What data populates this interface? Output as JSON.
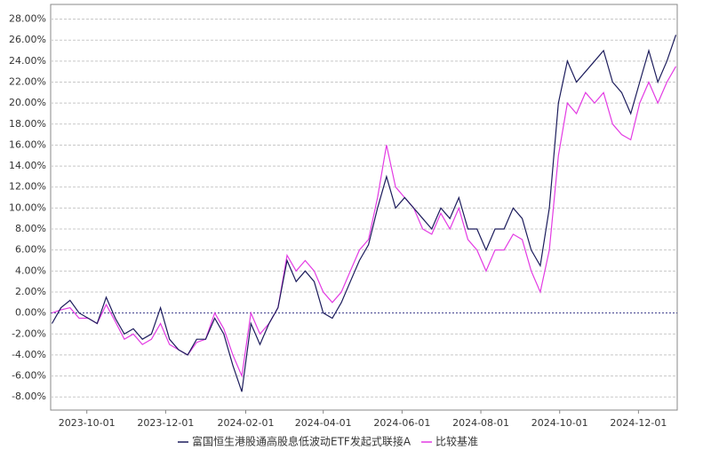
{
  "chart_data": {
    "type": "line",
    "x": [
      "2023-09-04",
      "2023-09-11",
      "2023-09-18",
      "2023-09-25",
      "2023-10-02",
      "2023-10-09",
      "2023-10-16",
      "2023-10-23",
      "2023-10-30",
      "2023-11-06",
      "2023-11-13",
      "2023-11-20",
      "2023-11-27",
      "2023-12-04",
      "2023-12-11",
      "2023-12-18",
      "2023-12-25",
      "2024-01-01",
      "2024-01-08",
      "2024-01-15",
      "2024-01-22",
      "2024-01-29",
      "2024-02-05",
      "2024-02-12",
      "2024-02-19",
      "2024-02-26",
      "2024-03-04",
      "2024-03-11",
      "2024-03-18",
      "2024-03-25",
      "2024-04-01",
      "2024-04-08",
      "2024-04-15",
      "2024-04-22",
      "2024-04-29",
      "2024-05-06",
      "2024-05-13",
      "2024-05-20",
      "2024-05-27",
      "2024-06-03",
      "2024-06-10",
      "2024-06-17",
      "2024-06-24",
      "2024-07-01",
      "2024-07-08",
      "2024-07-15",
      "2024-07-22",
      "2024-07-29",
      "2024-08-05",
      "2024-08-12",
      "2024-08-19",
      "2024-08-26",
      "2024-09-02",
      "2024-09-09",
      "2024-09-16",
      "2024-09-23",
      "2024-09-30",
      "2024-10-07",
      "2024-10-14",
      "2024-10-21",
      "2024-10-28",
      "2024-11-04",
      "2024-11-11",
      "2024-11-18",
      "2024-11-25",
      "2024-12-02",
      "2024-12-09",
      "2024-12-16",
      "2024-12-23",
      "2024-12-30"
    ],
    "series": [
      {
        "name": "富国恒生港股通高股息低波动ETF发起式联接A",
        "color": "#1c1c5c",
        "values": [
          -1,
          0.5,
          1.2,
          0,
          -0.5,
          -1,
          1.5,
          -0.5,
          -2,
          -1.5,
          -2.5,
          -2,
          0.5,
          -2.5,
          -3.5,
          -4,
          -2.5,
          -2.5,
          -0.5,
          -2,
          -5,
          -7.5,
          -1,
          -3,
          -1,
          0.5,
          5,
          3,
          4,
          3,
          0,
          -0.5,
          1,
          3,
          5,
          6.5,
          10,
          13,
          10,
          11,
          10,
          9,
          8,
          10,
          9,
          11,
          8,
          8,
          6,
          8,
          8,
          10,
          9,
          6,
          4.5,
          10,
          20,
          24,
          22,
          23,
          24,
          25,
          22,
          21,
          19,
          22,
          25,
          22,
          24,
          26.5
        ]
      },
      {
        "name": "比较基准",
        "color": "#e33be3",
        "values": [
          0,
          0.3,
          0.5,
          -0.5,
          -0.5,
          -1,
          0.8,
          -0.8,
          -2.5,
          -2,
          -3,
          -2.5,
          -1,
          -3,
          -3.5,
          -4,
          -2.8,
          -2.5,
          0,
          -1.5,
          -4,
          -6,
          0,
          -2,
          -1,
          0.5,
          5.5,
          4,
          5,
          4,
          2,
          1,
          2,
          4,
          6,
          7,
          11,
          16,
          12,
          11,
          10,
          8,
          7.5,
          9.5,
          8,
          10,
          7,
          6,
          4,
          6,
          6,
          7.5,
          7,
          4,
          2,
          6,
          15,
          20,
          19,
          21,
          20,
          21,
          18,
          17,
          16.5,
          20,
          22,
          20,
          22,
          23.5
        ]
      }
    ],
    "xlim": [
      "2023-09-03",
      "2024-12-31"
    ],
    "xticks": [
      "2023-10-01",
      "2023-12-01",
      "2024-02-01",
      "2024-04-01",
      "2024-06-01",
      "2024-08-01",
      "2024-10-01",
      "2024-12-01"
    ],
    "ylim": [
      -9.25,
      29.4
    ],
    "yticks": [
      {
        "value": -8,
        "label": "-8.00%"
      },
      {
        "value": -6,
        "label": "-6.00%"
      },
      {
        "value": -4,
        "label": "-4.00%"
      },
      {
        "value": -2,
        "label": "-2.00%"
      },
      {
        "value": 0,
        "label": "0.00%"
      },
      {
        "value": 2,
        "label": "2.00%"
      },
      {
        "value": 4,
        "label": "4.00%"
      },
      {
        "value": 6,
        "label": "6.00%"
      },
      {
        "value": 8,
        "label": "8.00%"
      },
      {
        "value": 10,
        "label": "10.00%"
      },
      {
        "value": 12,
        "label": "12.00%"
      },
      {
        "value": 14,
        "label": "14.00%"
      },
      {
        "value": 16,
        "label": "16.00%"
      },
      {
        "value": 18,
        "label": "18.00%"
      },
      {
        "value": 20,
        "label": "20.00%"
      },
      {
        "value": 22,
        "label": "22.00%"
      },
      {
        "value": 24,
        "label": "24.00%"
      },
      {
        "value": 26,
        "label": "26.00%"
      },
      {
        "value": 28,
        "label": "28.00%"
      }
    ],
    "grid": true,
    "legend": "bottom"
  }
}
